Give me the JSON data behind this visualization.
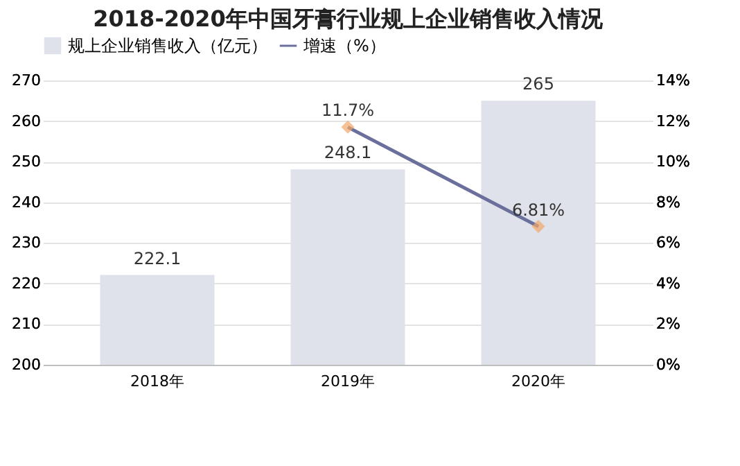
{
  "chart_data": {
    "type": "bar",
    "title": "2018-2020年中国牙膏行业规上企业销售收入情况",
    "categories": [
      "2018年",
      "2019年",
      "2020年"
    ],
    "series": [
      {
        "name": "规上企业销售收入（亿元）",
        "color": "#dfe2ea",
        "values": [
          222.1,
          248.1,
          265
        ],
        "value_labels": [
          "222.1",
          "248.1",
          "265"
        ]
      },
      {
        "name": "增速（%）",
        "type": "line",
        "axis": "y2",
        "color": "#6b6f9c",
        "marker": "diamond",
        "values": [
          null,
          11.7,
          6.81
        ],
        "value_labels": [
          null,
          "11.7%",
          "6.81%"
        ]
      }
    ],
    "ylim": [
      200,
      270
    ],
    "yticks": [
      200,
      210,
      220,
      230,
      240,
      250,
      260,
      270
    ],
    "y2lim": [
      0,
      14
    ],
    "y2ticks": [
      {
        "value": 0,
        "label": "0%"
      },
      {
        "value": 2,
        "label": "2%"
      },
      {
        "value": 4,
        "label": "4%"
      },
      {
        "value": 6,
        "label": "6%"
      },
      {
        "value": 8,
        "label": "8%"
      },
      {
        "value": 10,
        "label": "10%"
      },
      {
        "value": 12,
        "label": "12%"
      },
      {
        "value": 14,
        "label": "14%"
      }
    ],
    "grid": "y",
    "legend": "top"
  }
}
